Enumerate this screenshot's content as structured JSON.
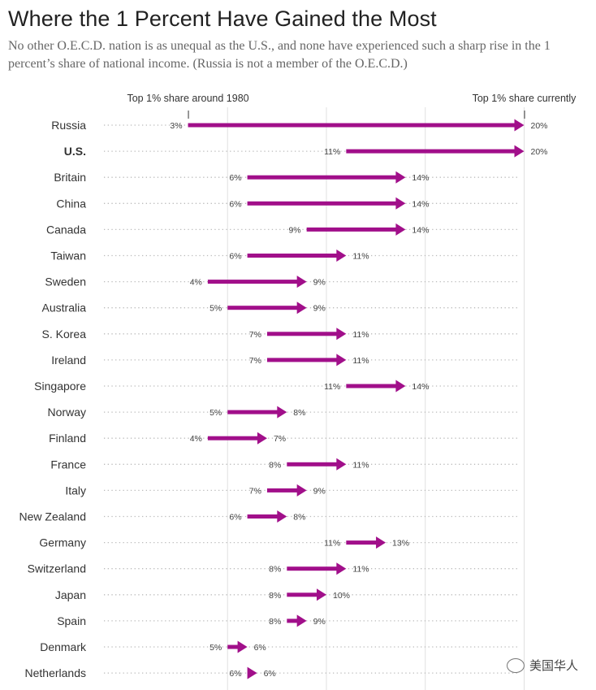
{
  "title": "Where the 1 Percent Have Gained the Most",
  "subtitle": "No other O.E.C.D. nation is as unequal as the U.S., and none have experienced such a sharp rise in the 1 percent’s share of national income. (Russia is not a member of the O.E.C.D.)",
  "watermark": "美国华人",
  "colors": {
    "arrow": "#a10f8a",
    "grid": "#e0e0e0",
    "dots": "#bbbbbb",
    "text": "#333333"
  },
  "chart_data": {
    "type": "arrow-range",
    "start_label": "Top 1% share around 1980",
    "end_label": "Top 1% share currently",
    "unit": "%",
    "gridlines": [
      5,
      10,
      15,
      20
    ],
    "rows": [
      {
        "country": "Russia",
        "start": 3,
        "end": 20,
        "bold": false
      },
      {
        "country": "U.S.",
        "start": 11,
        "end": 20,
        "bold": true
      },
      {
        "country": "Britain",
        "start": 6,
        "end": 14,
        "bold": false
      },
      {
        "country": "China",
        "start": 6,
        "end": 14,
        "bold": false
      },
      {
        "country": "Canada",
        "start": 9,
        "end": 14,
        "bold": false
      },
      {
        "country": "Taiwan",
        "start": 6,
        "end": 11,
        "bold": false
      },
      {
        "country": "Sweden",
        "start": 4,
        "end": 9,
        "bold": false
      },
      {
        "country": "Australia",
        "start": 5,
        "end": 9,
        "bold": false
      },
      {
        "country": "S. Korea",
        "start": 7,
        "end": 11,
        "bold": false
      },
      {
        "country": "Ireland",
        "start": 7,
        "end": 11,
        "bold": false
      },
      {
        "country": "Singapore",
        "start": 11,
        "end": 14,
        "bold": false
      },
      {
        "country": "Norway",
        "start": 5,
        "end": 8,
        "bold": false
      },
      {
        "country": "Finland",
        "start": 4,
        "end": 7,
        "bold": false
      },
      {
        "country": "France",
        "start": 8,
        "end": 11,
        "bold": false
      },
      {
        "country": "Italy",
        "start": 7,
        "end": 9,
        "bold": false
      },
      {
        "country": "New Zealand",
        "start": 6,
        "end": 8,
        "bold": false
      },
      {
        "country": "Germany",
        "start": 11,
        "end": 13,
        "bold": false
      },
      {
        "country": "Switzerland",
        "start": 8,
        "end": 11,
        "bold": false
      },
      {
        "country": "Japan",
        "start": 8,
        "end": 10,
        "bold": false
      },
      {
        "country": "Spain",
        "start": 8,
        "end": 9,
        "bold": false
      },
      {
        "country": "Denmark",
        "start": 5,
        "end": 6,
        "bold": false
      },
      {
        "country": "Netherlands",
        "start": 6,
        "end": 6,
        "bold": false
      }
    ]
  }
}
